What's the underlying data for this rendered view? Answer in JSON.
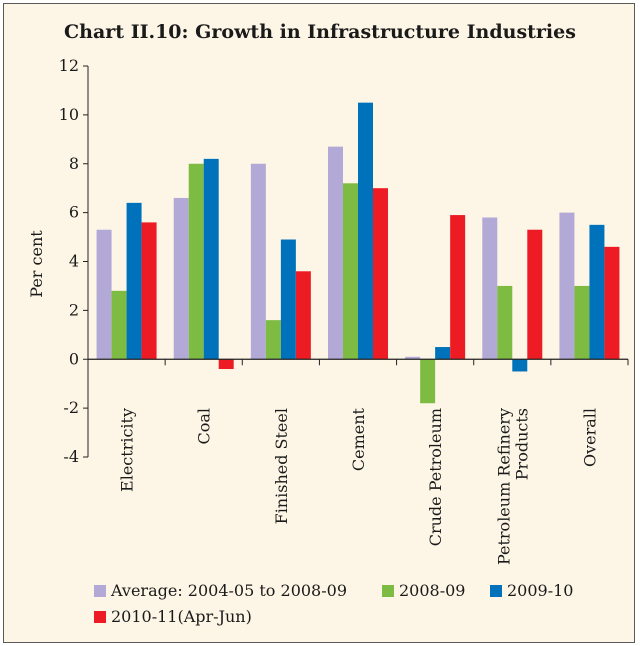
{
  "chart_data": {
    "type": "bar",
    "title": "Chart II.10: Growth in Infrastructure Industries",
    "ylabel": "Per cent",
    "xlabel": "",
    "ylim": [
      -4,
      12
    ],
    "yticks": [
      -4,
      -2,
      0,
      2,
      4,
      6,
      8,
      10,
      12
    ],
    "grid": false,
    "legend_position": "bottom",
    "categories": [
      [
        "Electricity"
      ],
      [
        "Coal"
      ],
      [
        "Finished Steel"
      ],
      [
        "Cement"
      ],
      [
        "Crude Petroleum"
      ],
      [
        "Petroleum Refinery",
        "Products"
      ],
      [
        "Overall"
      ]
    ],
    "series": [
      {
        "name": "Average: 2004-05 to 2008-09",
        "color": "#b3a9d6",
        "values": [
          5.3,
          6.6,
          8.0,
          8.7,
          0.1,
          5.8,
          6.0
        ]
      },
      {
        "name": "2008-09",
        "color": "#7dbb42",
        "values": [
          2.8,
          8.0,
          1.6,
          7.2,
          -1.8,
          3.0,
          3.0
        ]
      },
      {
        "name": "2009-10",
        "color": "#0072bc",
        "values": [
          6.4,
          8.2,
          4.9,
          10.5,
          0.5,
          -0.5,
          5.5
        ]
      },
      {
        "name": "2010-11(Apr-Jun)",
        "color": "#ed1c24",
        "values": [
          5.6,
          -0.4,
          3.6,
          7.0,
          5.9,
          5.3,
          4.6
        ]
      }
    ]
  }
}
